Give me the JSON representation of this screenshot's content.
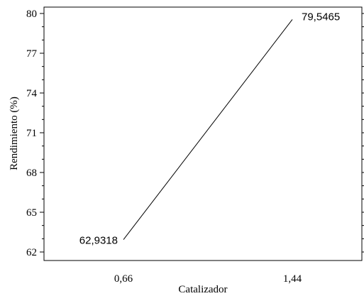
{
  "chart_data": {
    "type": "line",
    "title": "",
    "xlabel": "Catalizador",
    "ylabel": "Rendimiento (%)",
    "x": [
      0.66,
      1.44
    ],
    "x_tick_labels": [
      "0,66",
      "1,44"
    ],
    "series": [
      {
        "name": "",
        "values": [
          62.9318,
          79.5465
        ],
        "point_labels": [
          "62,9318",
          "79,5465"
        ],
        "color": "#000000"
      }
    ],
    "ylim": [
      62,
      80
    ],
    "y_ticks": [
      62,
      65,
      68,
      71,
      74,
      77,
      80
    ],
    "y_tick_labels": [
      "62",
      "65",
      "68",
      "71",
      "74",
      "77",
      "80"
    ],
    "grid": false,
    "minor_ticks": true
  }
}
